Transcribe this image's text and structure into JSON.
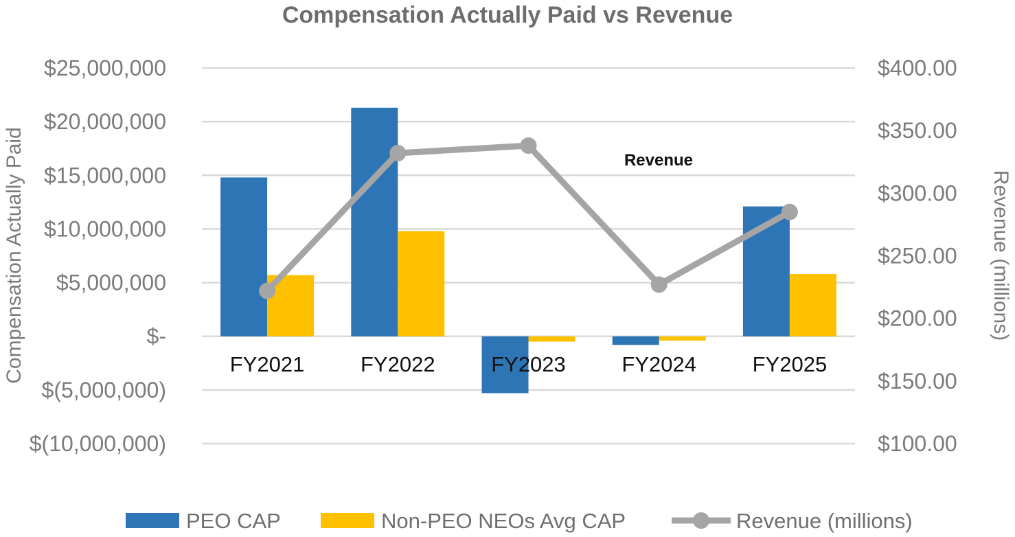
{
  "chart_data": {
    "type": "bar",
    "title": "Compensation Actually Paid vs Revenue",
    "categories": [
      "FY2021",
      "FY2022",
      "FY2023",
      "FY2024",
      "FY2025"
    ],
    "series": [
      {
        "name": "PEO CAP",
        "type": "bar",
        "axis": "left",
        "color": "#2e75b6",
        "values": [
          14800000,
          21300000,
          -5300000,
          -800000,
          12100000
        ]
      },
      {
        "name": "Non-PEO NEOs Avg CAP",
        "type": "bar",
        "axis": "left",
        "color": "#ffc000",
        "values": [
          5700000,
          9800000,
          -500000,
          -400000,
          5800000
        ]
      },
      {
        "name": "Revenue (millions)",
        "type": "line",
        "axis": "right",
        "color": "#a5a5a5",
        "values": [
          222,
          332,
          338,
          227,
          285
        ]
      }
    ],
    "y_left": {
      "label": "Compensation Actually Paid",
      "ylim": [
        -10000000,
        25000000
      ],
      "ticks": [
        25000000,
        20000000,
        15000000,
        10000000,
        5000000,
        0,
        -5000000,
        -10000000
      ],
      "tick_labels": [
        "$25,000,000",
        "$20,000,000",
        "$15,000,000",
        "$10,000,000",
        "$5,000,000",
        "$-",
        "$(5,000,000)",
        "$(10,000,000)"
      ]
    },
    "y_right": {
      "label": "Revenue (millions)",
      "ylim": [
        100,
        400
      ],
      "ticks": [
        400,
        350,
        300,
        250,
        200,
        150,
        100
      ],
      "tick_labels": [
        "$400.00",
        "$350.00",
        "$300.00",
        "$250.00",
        "$200.00",
        "$150.00",
        "$100.00"
      ]
    },
    "annotation": "Revenue",
    "grid": true,
    "legend_position": "bottom"
  }
}
